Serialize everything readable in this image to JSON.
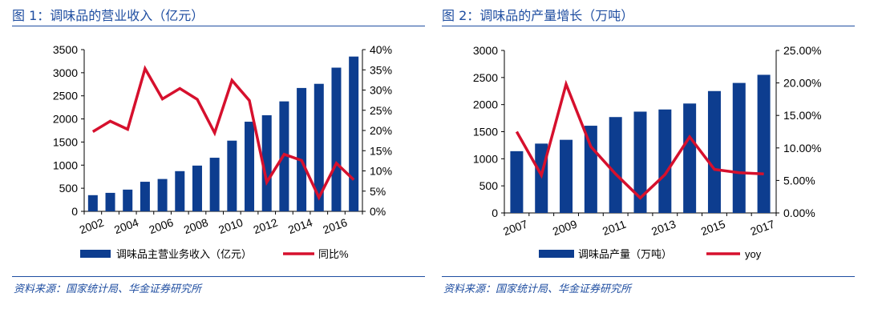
{
  "colors": {
    "bar": "#0d3d8f",
    "line": "#d6102d",
    "title": "#1f4ea1"
  },
  "panels": [
    {
      "title": "图 1：调味品的营业收入（亿元）",
      "source": "资料来源：国家统计局、华金证券研究所",
      "chart_data": {
        "type": "bar",
        "categories": [
          "2002",
          "2003",
          "2004",
          "2005",
          "2006",
          "2007",
          "2008",
          "2009",
          "2010",
          "2011",
          "2012",
          "2013",
          "2014",
          "2015",
          "2016",
          "2017"
        ],
        "x_tick_labels": [
          "2002",
          "2004",
          "2006",
          "2008",
          "2010",
          "2012",
          "2014",
          "2016"
        ],
        "series": [
          {
            "name": "调味品主营业务收入（亿元）",
            "type": "bar",
            "axis": "left",
            "values": [
              350,
              400,
              470,
              640,
              700,
              870,
              990,
              1160,
              1530,
              1940,
              2080,
              2380,
              2670,
              2760,
              3110,
              3350
            ]
          },
          {
            "name": "同比%",
            "type": "line",
            "axis": "right",
            "values": [
              19.7,
              22.3,
              20.3,
              35.3,
              27.8,
              30.4,
              27.7,
              19.4,
              32.4,
              27.4,
              7.2,
              14.1,
              12.6,
              3.4,
              11.9,
              7.8
            ]
          }
        ],
        "y_left": {
          "min": 0,
          "max": 3500,
          "step": 500,
          "ticks": [
            "0",
            "500",
            "1000",
            "1500",
            "2000",
            "2500",
            "3000",
            "3500"
          ]
        },
        "y_right": {
          "min": 0,
          "max": 40,
          "step": 5,
          "ticks": [
            "0%",
            "5%",
            "10%",
            "15%",
            "20%",
            "25%",
            "30%",
            "35%",
            "40%"
          ]
        },
        "legend": [
          "调味品主营业务收入（亿元）",
          "同比%"
        ]
      }
    },
    {
      "title": "图 2：调味品的产量增长（万吨）",
      "source": "资料来源：国家统计局、华金证券研究所",
      "chart_data": {
        "type": "bar",
        "categories": [
          "2007",
          "2008",
          "2009",
          "2010",
          "2011",
          "2012",
          "2013",
          "2014",
          "2015",
          "2016",
          "2017"
        ],
        "x_tick_labels": [
          "2007",
          "2009",
          "2011",
          "2013",
          "2015",
          "2017"
        ],
        "series": [
          {
            "name": "调味品产量（万吨）",
            "type": "bar",
            "axis": "left",
            "values": [
              1140,
              1280,
              1350,
              1610,
              1770,
              1870,
              1910,
              2020,
              2250,
              2400,
              2550
            ]
          },
          {
            "name": "yoy",
            "type": "line",
            "axis": "right",
            "values": [
              12.5,
              5.8,
              19.8,
              10.2,
              6.0,
              2.3,
              5.9,
              11.7,
              6.7,
              6.2,
              6.0
            ]
          }
        ],
        "y_left": {
          "min": 0,
          "max": 3000,
          "step": 500,
          "ticks": [
            "0",
            "500",
            "1000",
            "1500",
            "2000",
            "2500",
            "3000"
          ]
        },
        "y_right": {
          "min": 0,
          "max": 25,
          "step": 5,
          "ticks": [
            "0.00%",
            "5.00%",
            "10.00%",
            "15.00%",
            "20.00%",
            "25.00%"
          ]
        },
        "legend": [
          "调味品产量（万吨）",
          "yoy"
        ]
      }
    }
  ]
}
